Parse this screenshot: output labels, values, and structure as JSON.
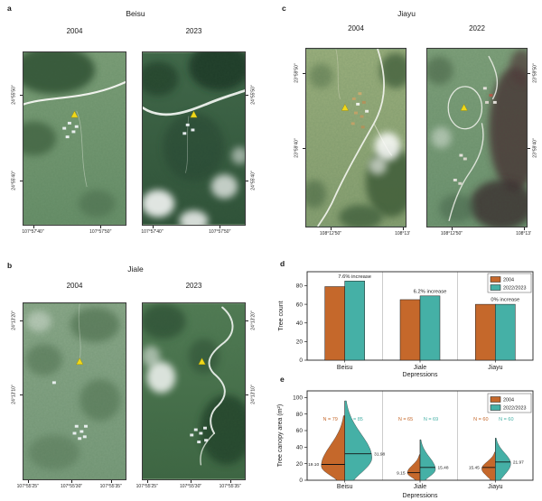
{
  "panels": {
    "a": {
      "label": "a",
      "title": "Beisu",
      "years": [
        "2004",
        "2023"
      ],
      "lat_ticks": [
        "24°55'50\"",
        "24°55'40\""
      ],
      "lon_ticks": [
        "107°57'40\"",
        "107°57'50\""
      ]
    },
    "b": {
      "label": "b",
      "title": "Jiale",
      "years": [
        "2004",
        "2023"
      ],
      "lat_ticks": [
        "24°13'20\"",
        "24°13'10\""
      ],
      "lon_ticks": [
        "107°55'25\"",
        "107°55'30\"",
        "107°55'35\""
      ]
    },
    "c": {
      "label": "c",
      "title": "Jiayu",
      "years": [
        "2004",
        "2022"
      ],
      "lat_ticks": [
        "23°59'50\"",
        "23°59'40\""
      ],
      "lon_ticks": [
        "108°12'50\"",
        "108°13'"
      ]
    },
    "d": {
      "label": "d"
    },
    "e": {
      "label": "e"
    }
  },
  "marker": {
    "name": "study-site-triangle",
    "color": "#f0d81a"
  },
  "chart_data": [
    {
      "id": "d",
      "type": "bar",
      "categories": [
        "Beisu",
        "Jiale",
        "Jiayu"
      ],
      "series": [
        {
          "name": "2004",
          "color": "#c5682b",
          "values": [
            79,
            65,
            60
          ]
        },
        {
          "name": "2022/2023",
          "color": "#45b0a6",
          "values": [
            85,
            69,
            60
          ]
        }
      ],
      "annotations": [
        "7.6% increase",
        "6.2% increase",
        "0% increase"
      ],
      "xlabel": "Depressions",
      "ylabel": "Tree count",
      "ylim": [
        0,
        95
      ],
      "yticks": [
        0,
        20,
        40,
        60,
        80
      ],
      "legend": [
        "2004",
        "2022/2023"
      ],
      "legend_position": "top-right",
      "grid": false
    },
    {
      "id": "e",
      "type": "violin",
      "categories": [
        "Beisu",
        "Jiale",
        "Jiayu"
      ],
      "series": [
        {
          "name": "2004",
          "color": "#c5682b",
          "side": "left",
          "n": [
            79,
            65,
            60
          ],
          "medians": [
            19.1,
            9.15,
            15.45
          ],
          "modes": [
            17,
            9,
            14
          ],
          "maxima": [
            78,
            31,
            34
          ],
          "halfwidths": [
            26,
            14,
            15
          ]
        },
        {
          "name": "2022/2023",
          "color": "#45b0a6",
          "side": "right",
          "n": [
            85,
            69,
            60
          ],
          "medians": [
            31.98,
            15.48,
            21.97
          ],
          "modes": [
            27,
            13,
            20
          ],
          "maxima": [
            96,
            49,
            51
          ],
          "halfwidths": [
            30,
            17,
            17
          ]
        }
      ],
      "n_labels": [
        [
          "N = 79",
          "N = 85"
        ],
        [
          "N = 65",
          "N = 69"
        ],
        [
          "N = 60",
          "N = 60"
        ]
      ],
      "median_labels": [
        [
          "19.10",
          "31.98"
        ],
        [
          "9.15",
          "15.48"
        ],
        [
          "15.45",
          "21.97"
        ]
      ],
      "xlabel": "Depressions",
      "ylabel": "Tree canopy area (m²)",
      "ylim": [
        0,
        108
      ],
      "yticks": [
        0,
        20,
        40,
        60,
        80,
        100
      ],
      "legend": [
        "2004",
        "2022/2023"
      ],
      "legend_position": "top-right"
    }
  ]
}
